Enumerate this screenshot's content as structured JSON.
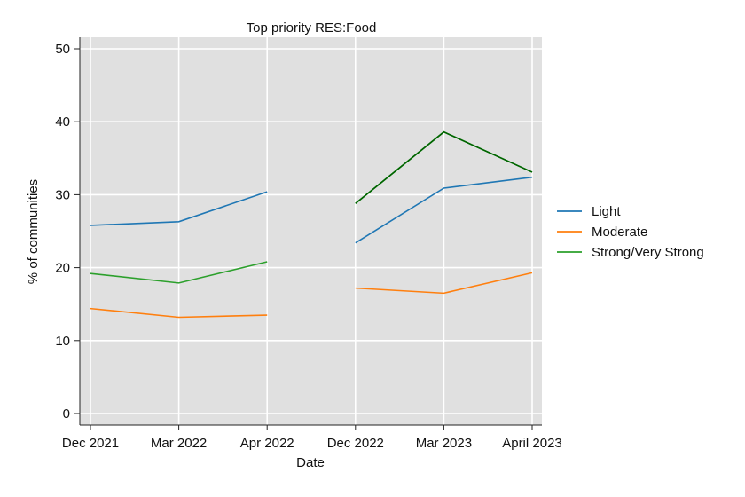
{
  "chart_data": {
    "type": "line",
    "title": "Top priority RES:Food",
    "xlabel": "Date",
    "ylabel": "% of communities",
    "categories": [
      "Dec 2021",
      "Mar 2022",
      "Apr 2022",
      "Dec 2022",
      "Mar 2023",
      "April 2023"
    ],
    "ylim": [
      0,
      50
    ],
    "yticks": [
      0,
      10,
      20,
      30,
      40,
      50
    ],
    "grid": true,
    "legend_position": "right",
    "series": [
      {
        "name": "Light",
        "color": "#1f77b4",
        "values": [
          25.8,
          26.3,
          30.4,
          23.4,
          30.9,
          32.4
        ]
      },
      {
        "name": "Moderate",
        "color": "#ff7f0e",
        "values": [
          14.4,
          13.2,
          13.5,
          17.2,
          16.5,
          19.3
        ]
      },
      {
        "name": "Strong/Very Strong",
        "color": "#2ca02c",
        "values": [
          19.2,
          17.9,
          20.8,
          28.8,
          38.6,
          33.1
        ]
      }
    ],
    "overlay_series": [
      {
        "color": "#006400",
        "values": [
          null,
          null,
          null,
          28.8,
          38.6,
          33.1
        ]
      }
    ]
  }
}
